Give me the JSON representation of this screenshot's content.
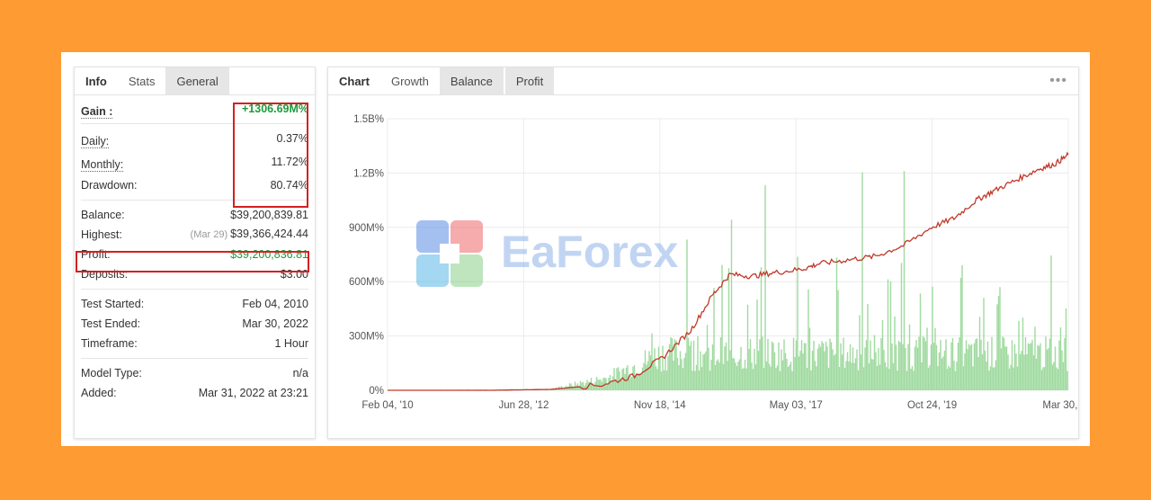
{
  "left_tabs": [
    "Info",
    "Stats",
    "General"
  ],
  "stats": {
    "gain_label": "Gain :",
    "gain_value": "+1306.69M%",
    "daily_label": "Daily:",
    "daily_value": "0.37%",
    "monthly_label": "Monthly:",
    "monthly_value": "11.72%",
    "drawdown_label": "Drawdown:",
    "drawdown_value": "80.74%",
    "balance_label": "Balance:",
    "balance_value": "$39,200,839.81",
    "highest_label": "Highest:",
    "highest_date": "(Mar 29)",
    "highest_value": "$39,366,424.44",
    "profit_label": "Profit:",
    "profit_value": "$39,200,836.81",
    "deposits_label": "Deposits:",
    "deposits_value": "$3.00",
    "test_started_label": "Test Started:",
    "test_started_value": "Feb 04, 2010",
    "test_ended_label": "Test Ended:",
    "test_ended_value": "Mar 30, 2022",
    "timeframe_label": "Timeframe:",
    "timeframe_value": "1 Hour",
    "model_type_label": "Model Type:",
    "model_type_value": "n/a",
    "added_label": "Added:",
    "added_value": "Mar 31, 2022 at 23:21"
  },
  "right_tabs": [
    "Chart",
    "Growth",
    "Balance",
    "Profit"
  ],
  "more_icon": "•••",
  "watermark_text": "EaForex",
  "colors": {
    "background": "#ff9b33",
    "growth_line": "#c0392b",
    "volume_bars": "#8fd48f",
    "highlight_box": "#d42020",
    "positive": "#1a9a3a"
  },
  "chart_data": {
    "type": "line",
    "y_tick_labels": [
      "0%",
      "300M%",
      "600M%",
      "900M%",
      "1.2B%",
      "1.5B%"
    ],
    "x_tick_labels": [
      "Feb 04, '10",
      "Jun 28, '12",
      "Nov 18, '14",
      "May 03, '17",
      "Oct 24, '19",
      "Mar 30, '22"
    ],
    "ylim": [
      0,
      1500000000
    ],
    "series": [
      {
        "kind": "growth_line",
        "x": [
          2010.09,
          2012.0,
          2013.0,
          2013.9,
          2014.5,
          2015.0,
          2015.5,
          2015.9,
          2016.2,
          2016.6,
          2017.0,
          2017.5,
          2017.8,
          2018.3,
          2018.8,
          2019.3,
          2019.8,
          2020.2,
          2020.6,
          2020.9,
          2021.3,
          2021.7,
          2022.0,
          2022.24
        ],
        "y": [
          0,
          0,
          5000000,
          30000000,
          80000000,
          180000000,
          330000000,
          530000000,
          640000000,
          630000000,
          650000000,
          670000000,
          700000000,
          720000000,
          740000000,
          800000000,
          900000000,
          950000000,
          1050000000,
          1100000000,
          1160000000,
          1220000000,
          1250000000,
          1300000000
        ]
      },
      {
        "kind": "volume_bars",
        "note_levels": [
          300000000,
          450000000,
          600000000
        ],
        "x": [
          2010.09,
          2013.0,
          2014.0,
          2014.5,
          2015.0,
          2016.0,
          2018.0,
          2020.0,
          2022.24
        ],
        "y": [
          0,
          10000000,
          100000000,
          200000000,
          300000000,
          300000000,
          300000000,
          300000000,
          300000000
        ]
      }
    ],
    "grid": true,
    "legend": "none"
  }
}
